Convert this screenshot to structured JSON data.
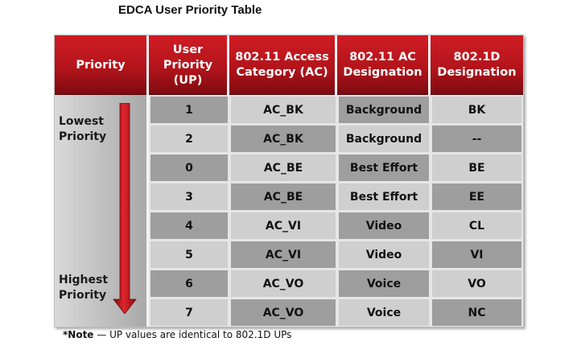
{
  "title": "EDCA User Priority Table",
  "headers": {
    "priority": "Priority",
    "up": [
      "User",
      "Priority",
      "(UP)"
    ],
    "ac": [
      "802.11 Access",
      "Category (AC)"
    ],
    "designation": [
      "802.11 AC",
      "Designation"
    ],
    "d1": [
      "802.1D",
      "Designation"
    ]
  },
  "priority_labels": {
    "lowest": [
      "Lowest",
      "Priority"
    ],
    "highest": [
      "Highest",
      "Priority"
    ]
  },
  "rows": [
    {
      "up": "1",
      "ac": "AC_BK",
      "designation": "Background",
      "d1": "BK"
    },
    {
      "up": "2",
      "ac": "AC_BK",
      "designation": "Background",
      "d1": "--"
    },
    {
      "up": "0",
      "ac": "AC_BE",
      "designation": "Best Effort",
      "d1": "BE"
    },
    {
      "up": "3",
      "ac": "AC_BE",
      "designation": "Best Effort",
      "d1": "EE"
    },
    {
      "up": "4",
      "ac": "AC_VI",
      "designation": "Video",
      "d1": "CL"
    },
    {
      "up": "5",
      "ac": "AC_VI",
      "designation": "Video",
      "d1": "VI"
    },
    {
      "up": "6",
      "ac": "AC_VO",
      "designation": "Voice",
      "d1": "VO"
    },
    {
      "up": "7",
      "ac": "AC_VO",
      "designation": "Voice",
      "d1": "NC"
    }
  ],
  "note": {
    "label": "*Note",
    "text": " — UP values are identical to 802.1D UPs"
  },
  "colors": {
    "header_red": "#c0161d",
    "arrow_red": "#c8121a",
    "cell_dark": "#9e9e9e",
    "cell_light": "#cfcfcf"
  }
}
